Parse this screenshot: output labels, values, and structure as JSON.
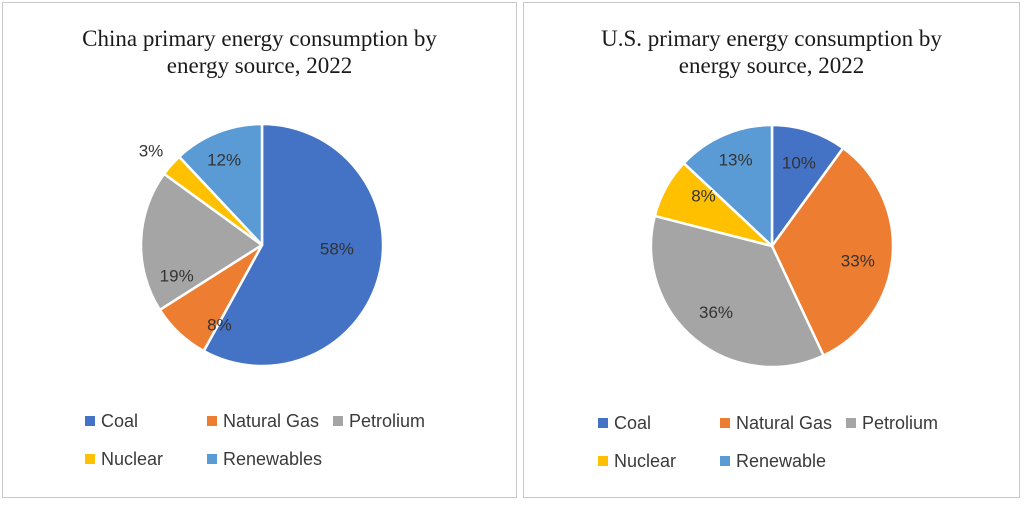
{
  "chart_data": [
    {
      "type": "pie",
      "title": "China primary energy consumption by energy source, 2022",
      "title_lines": [
        "China primary energy consumption by",
        "energy source, 2022"
      ],
      "categories": [
        "Coal",
        "Natural Gas",
        "Petrolium",
        "Nuclear",
        "Renewables"
      ],
      "values": [
        58,
        8,
        19,
        3,
        12
      ],
      "labels": [
        "58%",
        "8%",
        "19%",
        "3%",
        "12%"
      ],
      "colors": [
        "#4472C4",
        "#ED7D31",
        "#A5A5A5",
        "#FFC000",
        "#5B9BD5"
      ],
      "legend_position": "bottom"
    },
    {
      "type": "pie",
      "title": "U.S. primary energy consumption by energy source, 2022",
      "title_lines": [
        "U.S. primary energy consumption by",
        "energy source, 2022"
      ],
      "categories": [
        "Coal",
        "Natural Gas",
        "Petrolium",
        "Nuclear",
        "Renewable"
      ],
      "values": [
        10,
        33,
        36,
        8,
        13
      ],
      "labels": [
        "10%",
        "33%",
        "36%",
        "8%",
        "13%"
      ],
      "colors": [
        "#4472C4",
        "#ED7D31",
        "#A5A5A5",
        "#FFC000",
        "#5B9BD5"
      ],
      "legend_position": "bottom"
    }
  ]
}
